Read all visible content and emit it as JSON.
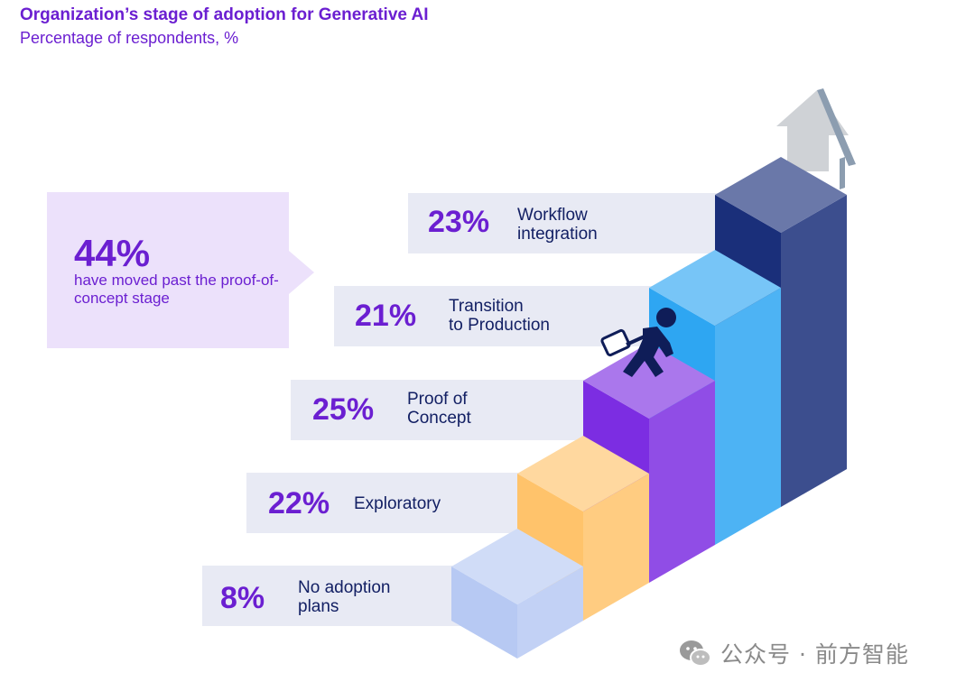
{
  "title": "Organization’s stage of adoption for Generative AI",
  "subtitle": "Percentage of respondents, %",
  "callout": {
    "value": "44%",
    "text": "have moved past the proof-of-concept stage"
  },
  "colors": {
    "accent": "#6b1fd1",
    "band": "#e8eaf4",
    "callout_bg": "#ece1fb",
    "label_text": "#132064"
  },
  "chart_data": {
    "type": "bar",
    "title": "Organization’s stage of adoption for Generative AI",
    "subtitle": "Percentage of respondents, %",
    "categories": [
      "No adoption plans",
      "Exploratory",
      "Proof of Concept",
      "Transition to Production",
      "Workflow integration"
    ],
    "values": [
      8,
      22,
      25,
      21,
      23
    ],
    "unit": "%",
    "series": [
      {
        "name": "Percentage of respondents",
        "values": [
          8,
          22,
          25,
          21,
          23
        ]
      }
    ],
    "bar_colors": [
      "#b7c9f3",
      "#ffc36b",
      "#7c2de2",
      "#2ea6f2",
      "#1a2f7a"
    ],
    "stages": [
      {
        "pct": "8%",
        "label": "No adoption\nplans"
      },
      {
        "pct": "22%",
        "label": "Exploratory"
      },
      {
        "pct": "25%",
        "label": "Proof of\nConcept"
      },
      {
        "pct": "21%",
        "label": "Transition\nto Production"
      },
      {
        "pct": "23%",
        "label": "Workflow\nintegration"
      }
    ],
    "grid": false,
    "legend": "none"
  },
  "watermark": {
    "text": "公众号 · 前方智能",
    "icon": "wechat-icon"
  }
}
